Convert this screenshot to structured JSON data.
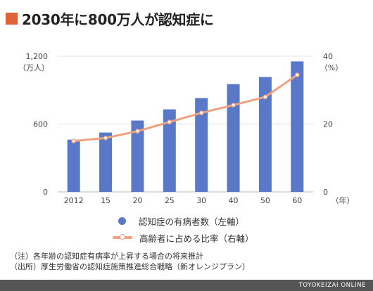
{
  "title": "2030年に800万人が認知症に",
  "colors": {
    "accent": "#e0623a",
    "bar": "#5a78c8",
    "line": "#eea27f",
    "grid": "#e3e3e3",
    "footer_bg": "#555555"
  },
  "chart_data": {
    "type": "bar+line",
    "categories": [
      "2012",
      "15",
      "20",
      "25",
      "30",
      "40",
      "50",
      "60"
    ],
    "x_unit": "（年）",
    "left_axis": {
      "unit": "（万人）",
      "ticks": [
        "0",
        "600",
        "1,200"
      ],
      "ylim": [
        0,
        1200
      ]
    },
    "right_axis": {
      "unit": "（%）",
      "ticks": [
        "0",
        "20",
        "40"
      ],
      "ylim": [
        0,
        40
      ]
    },
    "series": [
      {
        "name": "認知症の有病者数（左軸）",
        "kind": "bar",
        "axis": "left",
        "values": [
          462,
          525,
          631,
          730,
          830,
          953,
          1016,
          1154
        ]
      },
      {
        "name": "高齢者に占める比率（右軸）",
        "kind": "line",
        "axis": "right",
        "values": [
          15.0,
          15.9,
          17.9,
          20.6,
          23.3,
          25.6,
          28.0,
          34.5
        ]
      }
    ],
    "grid": true
  },
  "legend": {
    "bar_label": "認知症の有病者数（左軸）",
    "line_label": "高齢者に占める比率（右軸）"
  },
  "notes": [
    "（注）各年齢の認知症有病率が上昇する場合の将来推計",
    "（出所）厚生労働省の認知症施策推進総合戦略（新オレンジプラン）"
  ],
  "footer": "TOYOKEIZAI ONLINE"
}
